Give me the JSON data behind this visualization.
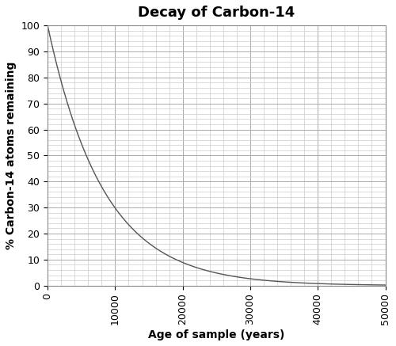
{
  "title": "Decay of Carbon-14",
  "xlabel": "Age of sample (years)",
  "ylabel": "% Carbon-14 atoms remaining",
  "xlim": [
    0,
    50000
  ],
  "ylim": [
    0,
    100
  ],
  "x_major_ticks": [
    0,
    10000,
    20000,
    30000,
    40000,
    50000
  ],
  "y_major_ticks": [
    0,
    10,
    20,
    30,
    40,
    50,
    60,
    70,
    80,
    90,
    100
  ],
  "x_minor_tick_spacing": 2000,
  "y_minor_tick_spacing": 2,
  "half_life": 5730,
  "line_color": "#555555",
  "line_width": 1.0,
  "major_grid_color": "#aaaaaa",
  "minor_grid_color": "#cccccc",
  "major_grid_linewidth": 0.7,
  "minor_grid_linewidth": 0.5,
  "background_color": "#ffffff",
  "title_fontsize": 13,
  "label_fontsize": 10,
  "tick_fontsize": 9,
  "figsize": [
    5.0,
    4.37
  ],
  "dpi": 100
}
